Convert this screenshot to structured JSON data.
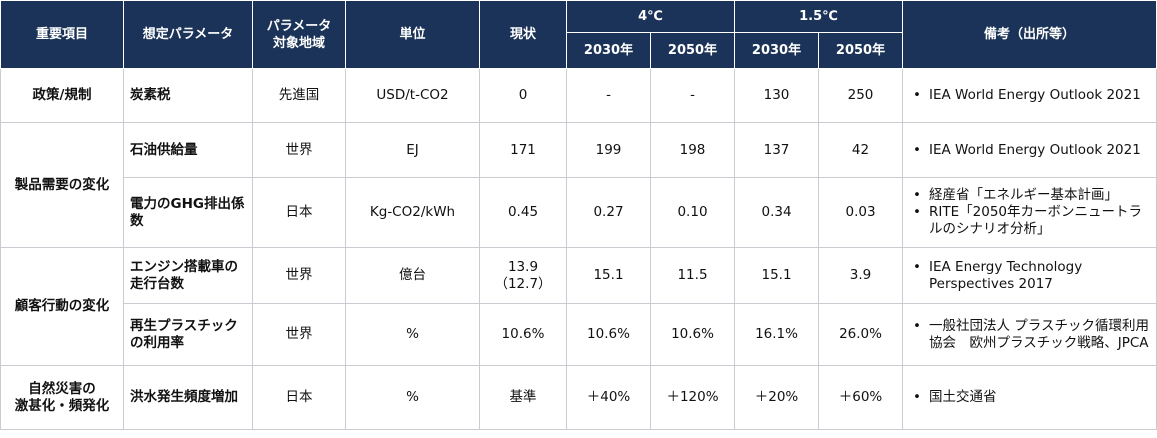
{
  "header": {
    "category": "重要項目",
    "parameter": "想定パラメータ",
    "region_line1": "パラメータ",
    "region_line2": "対象地域",
    "unit": "単位",
    "current": "現状",
    "scenario_4c": "4℃",
    "scenario_15c": "1.5℃",
    "y2030_a": "2030年",
    "y2050_a": "2050年",
    "y2030_b": "2030年",
    "y2050_b": "2050年",
    "notes": "備考（出所等）"
  },
  "rows": [
    {
      "category": "政策/規制",
      "parameter": "炭素税",
      "region": "先進国",
      "unit": "USD/t-CO2",
      "current": "0",
      "c4_2030": "-",
      "c4_2050": "-",
      "c15_2030": "130",
      "c15_2050": "250",
      "notes": [
        "IEA World Energy Outlook 2021"
      ]
    },
    {
      "category": "製品需要の変化",
      "parameter": "石油供給量",
      "region": "世界",
      "unit": "EJ",
      "current": "171",
      "c4_2030": "199",
      "c4_2050": "198",
      "c15_2030": "137",
      "c15_2050": "42",
      "notes": [
        "IEA World Energy Outlook 2021"
      ]
    },
    {
      "parameter": "電力のGHG排出係数",
      "region": "日本",
      "unit": "Kg-CO2/kWh",
      "current": "0.45",
      "c4_2030": "0.27",
      "c4_2050": "0.10",
      "c15_2030": "0.34",
      "c15_2050": "0.03",
      "notes": [
        "経産省「エネルギー基本計画」",
        "RITE「2050年カーボンニュートラルのシナリオ分析」"
      ]
    },
    {
      "category": "顧客行動の変化",
      "parameter": "エンジン搭載車の走行台数",
      "region": "世界",
      "unit": "億台",
      "current_line1": "13.9",
      "current_line2": "（12.7）",
      "c4_2030": "15.1",
      "c4_2050": "11.5",
      "c15_2030": "15.1",
      "c15_2050": "3.9",
      "notes": [
        "IEA Energy Technology Perspectives 2017"
      ]
    },
    {
      "parameter": "再生プラスチックの利用率",
      "region": "世界",
      "unit": "%",
      "current": "10.6%",
      "c4_2030": "10.6%",
      "c4_2050": "10.6%",
      "c15_2030": "16.1%",
      "c15_2050": "26.0%",
      "notes": [
        "一般社団法人 プラスチック循環利用協会　欧州プラスチック戦略、JPCA"
      ]
    },
    {
      "category_line1": "自然災害の",
      "category_line2": "激甚化・頻発化",
      "parameter": "洪水発生頻度増加",
      "region": "日本",
      "unit": "%",
      "current": "基準",
      "c4_2030": "＋40%",
      "c4_2050": "＋120%",
      "c15_2030": "＋20%",
      "c15_2050": "＋60%",
      "notes": [
        "国土交通省"
      ]
    }
  ]
}
